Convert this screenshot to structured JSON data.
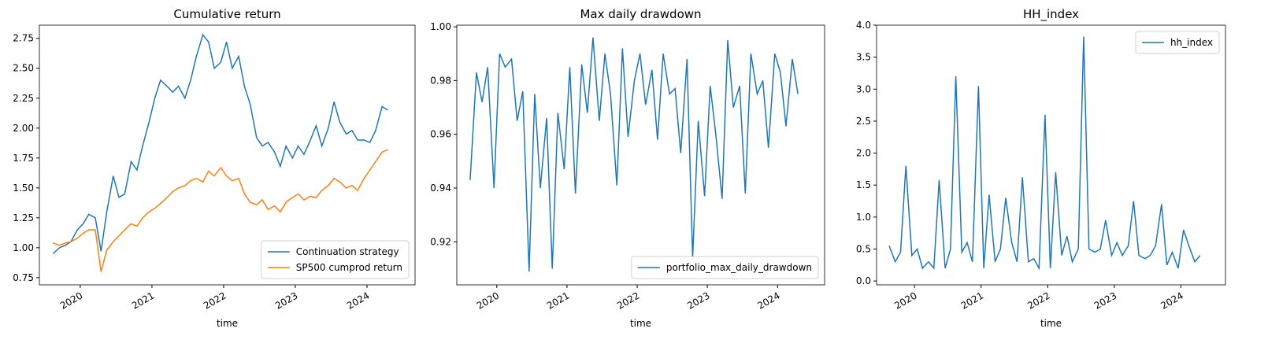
{
  "chart_data": [
    {
      "type": "line",
      "title": "Cumulative return",
      "xlabel": "time",
      "x": [
        2019.62,
        2019.71,
        2019.79,
        2019.87,
        2019.96,
        2020.04,
        2020.12,
        2020.21,
        2020.29,
        2020.37,
        2020.46,
        2020.54,
        2020.62,
        2020.71,
        2020.79,
        2020.87,
        2020.96,
        2021.04,
        2021.12,
        2021.21,
        2021.29,
        2021.37,
        2021.46,
        2021.54,
        2021.62,
        2021.71,
        2021.79,
        2021.87,
        2021.96,
        2022.04,
        2022.12,
        2022.21,
        2022.29,
        2022.37,
        2022.46,
        2022.54,
        2022.62,
        2022.71,
        2022.79,
        2022.87,
        2022.96,
        2023.04,
        2023.12,
        2023.21,
        2023.29,
        2023.37,
        2023.46,
        2023.54,
        2023.62,
        2023.71,
        2023.79,
        2023.87,
        2023.96,
        2024.04,
        2024.12,
        2024.21,
        2024.29
      ],
      "series": [
        {
          "name": "Continuation strategy",
          "color": "#1f77b4",
          "values": [
            0.95,
            1.0,
            1.02,
            1.05,
            1.15,
            1.2,
            1.28,
            1.25,
            0.97,
            1.3,
            1.6,
            1.42,
            1.45,
            1.72,
            1.65,
            1.85,
            2.05,
            2.25,
            2.4,
            2.35,
            2.3,
            2.35,
            2.25,
            2.4,
            2.6,
            2.78,
            2.72,
            2.5,
            2.55,
            2.72,
            2.5,
            2.6,
            2.35,
            2.2,
            1.92,
            1.85,
            1.88,
            1.8,
            1.68,
            1.85,
            1.75,
            1.85,
            1.78,
            1.9,
            2.02,
            1.85,
            2.0,
            2.22,
            2.05,
            1.95,
            1.98,
            1.9,
            1.9,
            1.88,
            1.98,
            2.18,
            2.15
          ]
        },
        {
          "name": "SP500 cumprod return",
          "color": "#ff7f0e",
          "values": [
            1.04,
            1.02,
            1.04,
            1.05,
            1.08,
            1.12,
            1.15,
            1.15,
            0.8,
            0.98,
            1.05,
            1.1,
            1.15,
            1.2,
            1.18,
            1.25,
            1.3,
            1.33,
            1.37,
            1.42,
            1.47,
            1.5,
            1.52,
            1.56,
            1.58,
            1.55,
            1.64,
            1.6,
            1.67,
            1.6,
            1.56,
            1.58,
            1.45,
            1.38,
            1.36,
            1.4,
            1.32,
            1.35,
            1.3,
            1.38,
            1.42,
            1.45,
            1.4,
            1.43,
            1.42,
            1.48,
            1.52,
            1.58,
            1.55,
            1.5,
            1.52,
            1.48,
            1.58,
            1.65,
            1.72,
            1.8,
            1.82
          ]
        }
      ],
      "xlim": [
        2019.43,
        2024.67
      ],
      "xticks": [
        2020,
        2021,
        2022,
        2023,
        2024
      ],
      "ylim": [
        0.69,
        2.86
      ],
      "yticks": [
        0.75,
        {
          "value": 1.0,
          "label": "1.00"
        },
        1.25,
        {
          "value": 1.5,
          "label": "1.50"
        },
        1.75,
        {
          "value": 2.0,
          "label": "2.00"
        },
        2.25,
        {
          "value": 2.5,
          "label": "2.50"
        },
        2.75
      ],
      "legend": "lower right"
    },
    {
      "type": "line",
      "title": "Max daily drawdown",
      "xlabel": "time",
      "x": [
        2019.62,
        2019.71,
        2019.79,
        2019.87,
        2019.96,
        2020.04,
        2020.12,
        2020.21,
        2020.29,
        2020.37,
        2020.46,
        2020.54,
        2020.62,
        2020.71,
        2020.79,
        2020.87,
        2020.96,
        2021.04,
        2021.12,
        2021.21,
        2021.29,
        2021.37,
        2021.46,
        2021.54,
        2021.62,
        2021.71,
        2021.79,
        2021.87,
        2021.96,
        2022.04,
        2022.12,
        2022.21,
        2022.29,
        2022.37,
        2022.46,
        2022.54,
        2022.62,
        2022.71,
        2022.79,
        2022.87,
        2022.96,
        2023.04,
        2023.12,
        2023.21,
        2023.29,
        2023.37,
        2023.46,
        2023.54,
        2023.62,
        2023.71,
        2023.79,
        2023.87,
        2023.96,
        2024.04,
        2024.12,
        2024.21,
        2024.29
      ],
      "series": [
        {
          "name": "portfolio_max_daily_drawdown",
          "color": "#1f77b4",
          "values": [
            0.943,
            0.983,
            0.972,
            0.985,
            0.94,
            0.99,
            0.985,
            0.988,
            0.965,
            0.976,
            0.909,
            0.975,
            0.94,
            0.966,
            0.91,
            0.968,
            0.947,
            0.985,
            0.938,
            0.986,
            0.968,
            0.996,
            0.965,
            0.99,
            0.975,
            0.941,
            0.992,
            0.959,
            0.98,
            0.99,
            0.971,
            0.984,
            0.958,
            0.99,
            0.975,
            0.977,
            0.953,
            0.988,
            0.914,
            0.965,
            0.937,
            0.978,
            0.96,
            0.936,
            0.995,
            0.97,
            0.978,
            0.938,
            0.99,
            0.975,
            0.98,
            0.955,
            0.99,
            0.983,
            0.963,
            0.988,
            0.975
          ]
        }
      ],
      "xlim": [
        2019.43,
        2024.67
      ],
      "xticks": [
        2020,
        2021,
        2022,
        2023,
        2024
      ],
      "ylim": [
        0.904,
        1.0006
      ],
      "yticks": [
        0.92,
        0.94,
        0.96,
        0.98,
        {
          "value": 1.0,
          "label": "1.00"
        }
      ],
      "legend": "lower right"
    },
    {
      "type": "line",
      "title": "HH_index",
      "xlabel": "time",
      "x": [
        2019.62,
        2019.71,
        2019.79,
        2019.87,
        2019.96,
        2020.04,
        2020.12,
        2020.21,
        2020.29,
        2020.37,
        2020.46,
        2020.54,
        2020.62,
        2020.71,
        2020.79,
        2020.87,
        2020.96,
        2021.04,
        2021.12,
        2021.21,
        2021.29,
        2021.37,
        2021.46,
        2021.54,
        2021.62,
        2021.71,
        2021.79,
        2021.87,
        2021.96,
        2022.04,
        2022.12,
        2022.21,
        2022.29,
        2022.37,
        2022.46,
        2022.54,
        2022.62,
        2022.71,
        2022.79,
        2022.87,
        2022.96,
        2023.04,
        2023.12,
        2023.21,
        2023.29,
        2023.37,
        2023.46,
        2023.54,
        2023.62,
        2023.71,
        2023.79,
        2023.87,
        2023.96,
        2024.04,
        2024.12,
        2024.21,
        2024.29
      ],
      "series": [
        {
          "name": "hh_index",
          "color": "#1f77b4",
          "values": [
            0.55,
            0.3,
            0.45,
            1.8,
            0.4,
            0.5,
            0.2,
            0.3,
            0.2,
            1.58,
            0.2,
            0.5,
            3.2,
            0.45,
            0.6,
            0.3,
            3.05,
            0.2,
            1.35,
            0.3,
            0.5,
            1.3,
            0.6,
            0.3,
            1.62,
            0.3,
            0.35,
            0.2,
            2.6,
            0.2,
            1.7,
            0.4,
            0.7,
            0.3,
            0.5,
            3.82,
            0.5,
            0.45,
            0.5,
            0.95,
            0.4,
            0.6,
            0.4,
            0.55,
            1.25,
            0.4,
            0.35,
            0.4,
            0.55,
            1.2,
            0.25,
            0.45,
            0.2,
            0.8,
            0.55,
            0.3,
            0.4
          ]
        }
      ],
      "xlim": [
        2019.43,
        2024.67
      ],
      "xticks": [
        2020,
        2021,
        2022,
        2023,
        2024
      ],
      "ylim": [
        -0.06,
        4.0
      ],
      "yticks": [
        {
          "value": 0,
          "label": "0.0"
        },
        0.5,
        {
          "value": 1,
          "label": "1.0"
        },
        1.5,
        {
          "value": 2,
          "label": "2.0"
        },
        2.5,
        {
          "value": 3,
          "label": "3.0"
        },
        3.5,
        {
          "value": 4,
          "label": "4.0"
        }
      ],
      "legend": "upper right"
    }
  ]
}
